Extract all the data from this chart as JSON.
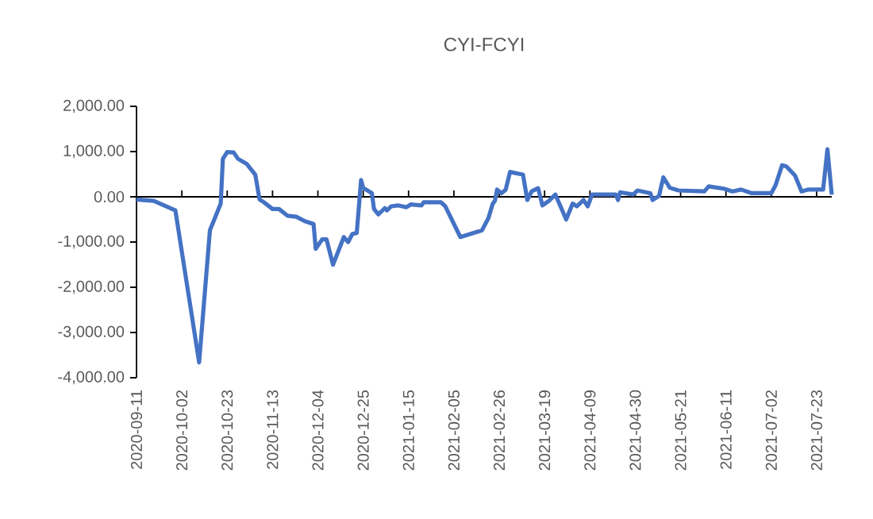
{
  "chart_data": {
    "type": "line",
    "title": "CYI-FCYI",
    "x": [
      "2020-09-11",
      "2020-09-19",
      "2020-09-29",
      "2020-10-10",
      "2020-10-15",
      "2020-10-20",
      "2020-10-21",
      "2020-10-23",
      "2020-10-26",
      "2020-10-28",
      "2020-11-01",
      "2020-11-05",
      "2020-11-07",
      "2020-11-09",
      "2020-11-13",
      "2020-11-16",
      "2020-11-20",
      "2020-11-24",
      "2020-11-28",
      "2020-12-02",
      "2020-12-03",
      "2020-12-06",
      "2020-12-08",
      "2020-12-11",
      "2020-12-13",
      "2020-12-16",
      "2020-12-18",
      "2020-12-20",
      "2020-12-22",
      "2020-12-24",
      "2020-12-25",
      "2020-12-29",
      "2020-12-30",
      "2021-01-01",
      "2021-01-04",
      "2021-01-05",
      "2021-01-07",
      "2021-01-10",
      "2021-01-14",
      "2021-01-16",
      "2021-01-21",
      "2021-01-22",
      "2021-01-30",
      "2021-02-01",
      "2021-02-08",
      "2021-02-18",
      "2021-02-21",
      "2021-02-23",
      "2021-02-24",
      "2021-02-25",
      "2021-02-27",
      "2021-03-01",
      "2021-03-03",
      "2021-03-07",
      "2021-03-09",
      "2021-03-11",
      "2021-03-13",
      "2021-03-16",
      "2021-03-18",
      "2021-03-21",
      "2021-03-24",
      "2021-03-29",
      "2021-04-01",
      "2021-04-03",
      "2021-04-06",
      "2021-04-08",
      "2021-04-10",
      "2021-04-21",
      "2021-04-22",
      "2021-04-23",
      "2021-04-29",
      "2021-05-01",
      "2021-05-07",
      "2021-05-08",
      "2021-05-11",
      "2021-05-13",
      "2021-05-16",
      "2021-05-20",
      "2021-06-01",
      "2021-06-03",
      "2021-06-10",
      "2021-06-14",
      "2021-06-18",
      "2021-06-23",
      "2021-07-02",
      "2021-07-04",
      "2021-07-07",
      "2021-07-09",
      "2021-07-13",
      "2021-07-16",
      "2021-07-19",
      "2021-07-26",
      "2021-07-28",
      "2021-07-30"
    ],
    "series": [
      {
        "color": "#4472c4",
        "values": [
          -60,
          -90,
          -300,
          -3660,
          -740,
          -150,
          840,
          990,
          980,
          840,
          730,
          490,
          -60,
          -120,
          -270,
          -270,
          -420,
          -440,
          -540,
          -600,
          -1150,
          -940,
          -940,
          -1500,
          -1260,
          -890,
          -1000,
          -820,
          -800,
          370,
          200,
          80,
          -270,
          -390,
          -250,
          -300,
          -210,
          -190,
          -230,
          -170,
          -190,
          -120,
          -120,
          -210,
          -890,
          -740,
          -470,
          -150,
          -90,
          160,
          80,
          160,
          550,
          510,
          490,
          -70,
          120,
          190,
          -190,
          -90,
          50,
          -500,
          -150,
          -210,
          -70,
          -210,
          50,
          50,
          -70,
          100,
          50,
          140,
          80,
          -70,
          20,
          430,
          200,
          140,
          120,
          230,
          180,
          120,
          160,
          80,
          80,
          260,
          700,
          670,
          470,
          120,
          160,
          160,
          1050,
          50
        ]
      }
    ],
    "xlim": [
      "2020-09-11",
      "2021-07-30"
    ],
    "xticks": [
      {
        "value": "2020-09-11",
        "label": "2020-09-11"
      },
      {
        "value": "2020-10-02",
        "label": "2020-10-02"
      },
      {
        "value": "2020-10-23",
        "label": "2020-10-23"
      },
      {
        "value": "2020-11-13",
        "label": "2020-11-13"
      },
      {
        "value": "2020-12-04",
        "label": "2020-12-04"
      },
      {
        "value": "2020-12-25",
        "label": "2020-12-25"
      },
      {
        "value": "2021-01-15",
        "label": "2021-01-15"
      },
      {
        "value": "2021-02-05",
        "label": "2021-02-05"
      },
      {
        "value": "2021-02-26",
        "label": "2021-02-26"
      },
      {
        "value": "2021-03-19",
        "label": "2021-03-19"
      },
      {
        "value": "2021-04-09",
        "label": "2021-04-09"
      },
      {
        "value": "2021-04-30",
        "label": "2021-04-30"
      },
      {
        "value": "2021-05-21",
        "label": "2021-05-21"
      },
      {
        "value": "2021-06-11",
        "label": "2021-06-11"
      },
      {
        "value": "2021-07-02",
        "label": "2021-07-02"
      },
      {
        "value": "2021-07-23",
        "label": "2021-07-23"
      }
    ],
    "ylim": [
      -4000,
      2000
    ],
    "yticks": [
      {
        "value": -4000,
        "label": "-4,000.00"
      },
      {
        "value": -3000,
        "label": "-3,000.00"
      },
      {
        "value": -2000,
        "label": "-2,000.00"
      },
      {
        "value": -1000,
        "label": "-1,000.00"
      },
      {
        "value": 0,
        "label": "0.00"
      },
      {
        "value": 1000,
        "label": "1,000.00"
      },
      {
        "value": 2000,
        "label": "2,000.00"
      }
    ],
    "marker": "none",
    "line_style": "solid"
  }
}
